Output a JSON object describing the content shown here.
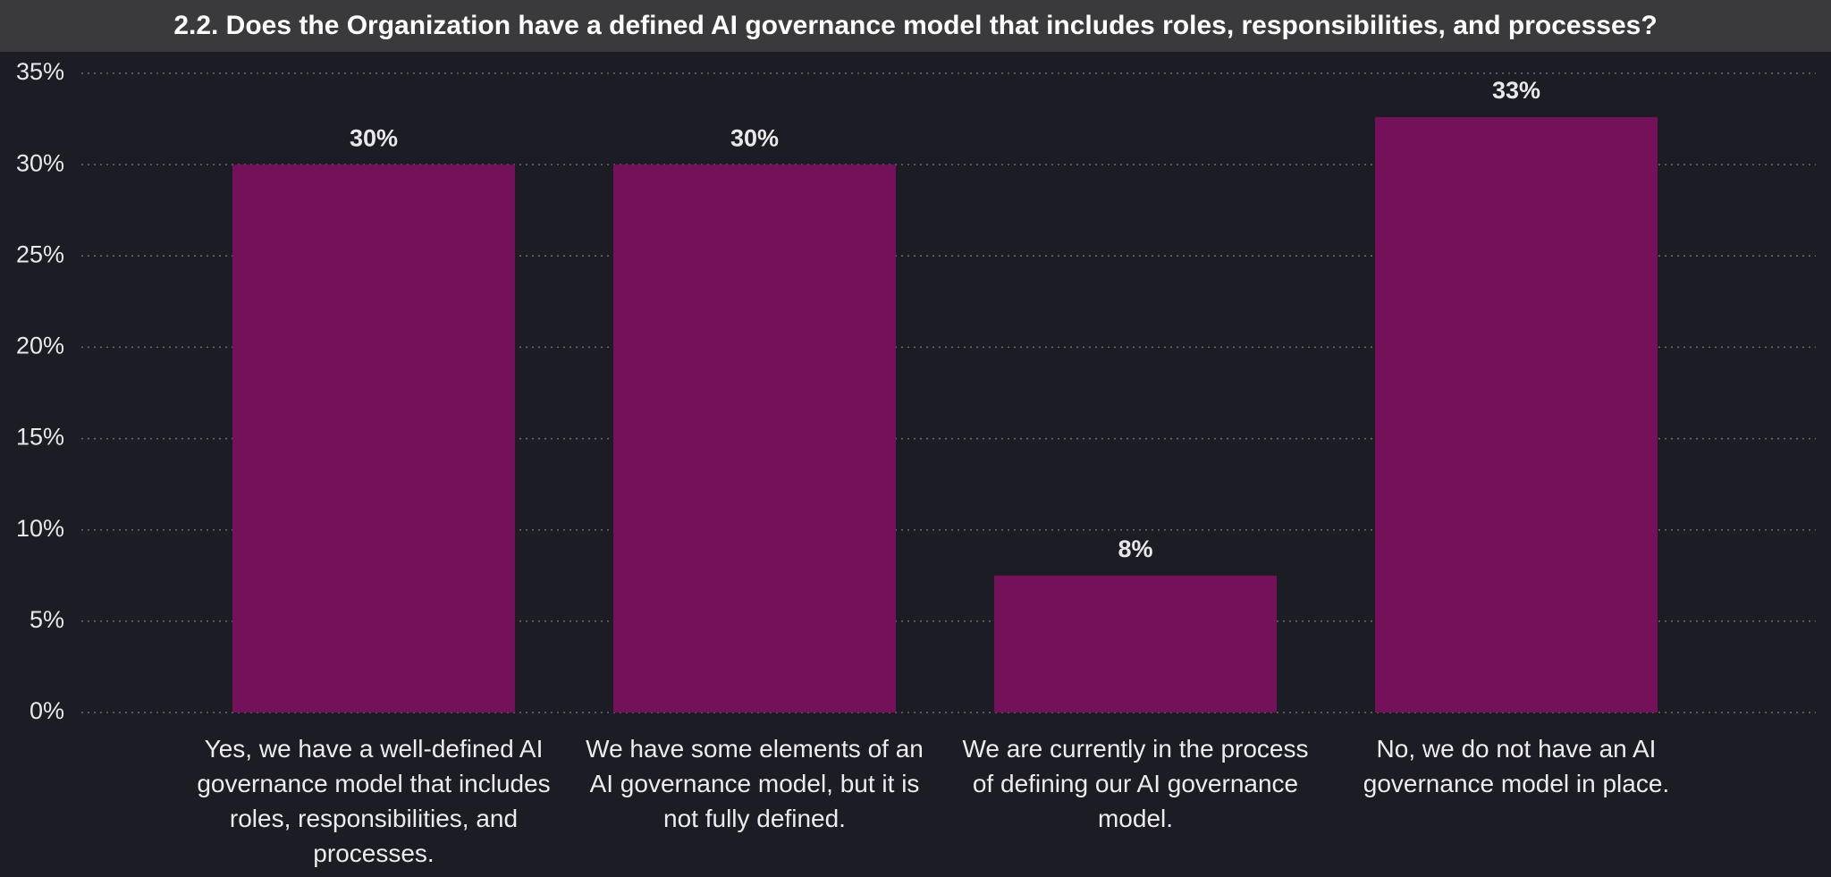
{
  "chart_data": {
    "type": "bar",
    "title": "2.2. Does the Organization have a defined AI governance model that includes roles, responsibilities, and processes?",
    "categories": [
      "Yes, we have a well-defined AI governance model that includes roles, responsibilities, and processes.",
      "We have some elements of an AI governance model, but it is not fully defined.",
      "We are currently in the process of defining our AI governance model.",
      "No, we do not have an AI governance model in place."
    ],
    "values": [
      30,
      30,
      7.5,
      32.6
    ],
    "value_labels": [
      "30%",
      "30%",
      "8%",
      "33%"
    ],
    "color": "#75105a",
    "ylim": [
      0,
      35
    ],
    "yticks": [
      {
        "value": 0,
        "label": "0%"
      },
      {
        "value": 5,
        "label": "5%"
      },
      {
        "value": 10,
        "label": "10%"
      },
      {
        "value": 15,
        "label": "15%"
      },
      {
        "value": 20,
        "label": "20%"
      },
      {
        "value": 25,
        "label": "25%"
      },
      {
        "value": 30,
        "label": "30%"
      },
      {
        "value": 35,
        "label": "35%"
      }
    ],
    "grid": true
  }
}
